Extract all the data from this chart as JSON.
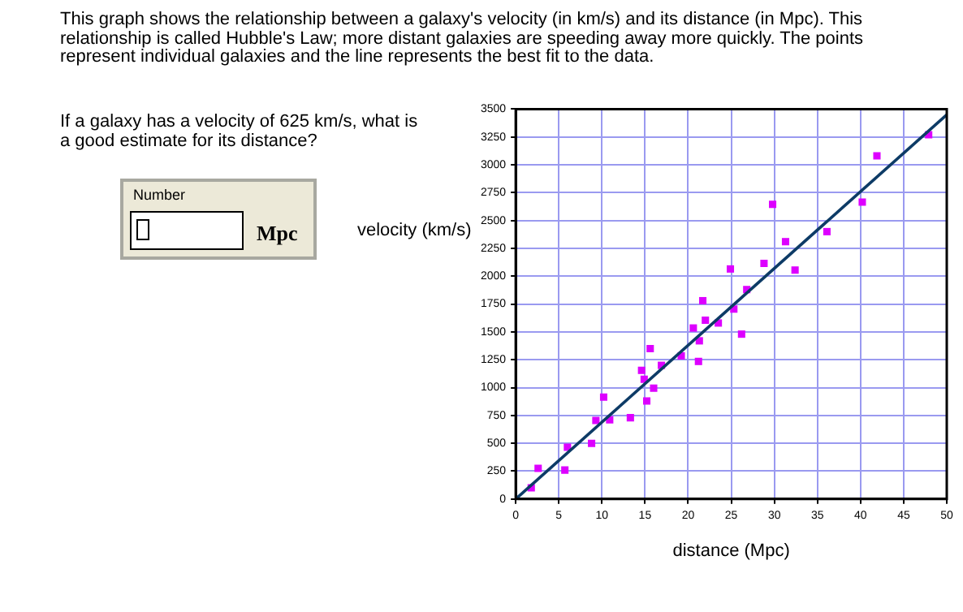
{
  "chart_data": {
    "type": "scatter",
    "title": "This graph shows the relationship between a galaxy's velocity (in km/s) and its distance (in Mpc). This relationship is called Hubble's Law; more distant galaxies are speeding away more quickly. The points represent individual galaxies and the line represents the best fit to the data.",
    "annotations": [
      "If a galaxy has a velocity of 625 km/s, what is a good estimate for its distance?",
      "Number",
      "Mpc"
    ],
    "xlabel": "distance (Mpc)",
    "ylabel": "velocity (km/s)",
    "series": [
      {
        "type": "scatter",
        "color": "#dd00ff",
        "marker": "square",
        "x": [
          1.8,
          2.6,
          5.7,
          6.0,
          8.8,
          9.3,
          10.2,
          10.9,
          13.3,
          14.6,
          14.9,
          15.2,
          15.6,
          16.0,
          16.9,
          19.2,
          20.6,
          21.2,
          21.3,
          21.7,
          22.0,
          23.5,
          24.9,
          25.3,
          26.2,
          26.8,
          28.8,
          29.8,
          31.3,
          32.4,
          36.1,
          40.2,
          41.9,
          47.9
        ],
        "values": [
          100,
          275,
          260,
          465,
          500,
          705,
          915,
          710,
          730,
          1155,
          1075,
          880,
          1350,
          995,
          1200,
          1285,
          1535,
          1235,
          1420,
          1780,
          1605,
          1580,
          2065,
          1705,
          1480,
          1880,
          2115,
          2645,
          2310,
          2055,
          2400,
          2665,
          3080,
          3270
        ]
      },
      {
        "type": "line",
        "color": "#0d3b66",
        "x": [
          0,
          50
        ],
        "values": [
          0,
          3450
        ]
      }
    ],
    "xlim": [
      0,
      50
    ],
    "xticks": [
      0,
      5,
      10,
      15,
      20,
      25,
      30,
      35,
      40,
      45,
      50
    ],
    "ylim": [
      0,
      3500
    ],
    "yticks": [
      0,
      250,
      500,
      750,
      1000,
      1250,
      1500,
      1750,
      2000,
      2250,
      2500,
      2750,
      3000,
      3250,
      3500
    ],
    "grid": true,
    "legend": false
  }
}
